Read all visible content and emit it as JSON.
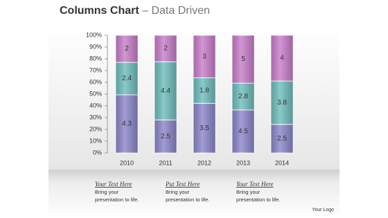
{
  "chart_data": {
    "type": "stacked_percent_bar",
    "title": "Columns Chart",
    "subtitle": "– Data Driven",
    "categories": [
      "2010",
      "2011",
      "2012",
      "2013",
      "2014"
    ],
    "series": [
      {
        "color": "#8a85c9",
        "values": [
          4.3,
          2.5,
          3.5,
          4.5,
          2.5
        ]
      },
      {
        "color": "#6dbdbb",
        "values": [
          2.4,
          4.4,
          1.8,
          2.8,
          3.8
        ]
      },
      {
        "color": "#c77cc9",
        "values": [
          2,
          2,
          3,
          5,
          4
        ]
      }
    ],
    "ylim": [
      0,
      100
    ],
    "yticks": [
      {
        "value": 0,
        "label": "0%"
      },
      {
        "value": 10,
        "label": "10%"
      },
      {
        "value": 20,
        "label": "20%"
      },
      {
        "value": 30,
        "label": "30%"
      },
      {
        "value": 40,
        "label": "40%"
      },
      {
        "value": 50,
        "label": "50%"
      },
      {
        "value": 60,
        "label": "60%"
      },
      {
        "value": 70,
        "label": "70%"
      },
      {
        "value": 80,
        "label": "80%"
      },
      {
        "value": 90,
        "label": "90%"
      },
      {
        "value": 100,
        "label": "100%"
      }
    ],
    "grid": false
  },
  "footer": {
    "blocks": [
      {
        "heading": "Your Text Here",
        "lines": [
          "Bring your",
          "presentation to life."
        ]
      },
      {
        "heading": "Put Text Here",
        "lines": [
          "Bring your",
          "presentation to life."
        ]
      },
      {
        "heading": "Your Text Here",
        "lines": [
          "Bring your",
          "presentation to life."
        ]
      }
    ],
    "logo": "Your Logo"
  }
}
